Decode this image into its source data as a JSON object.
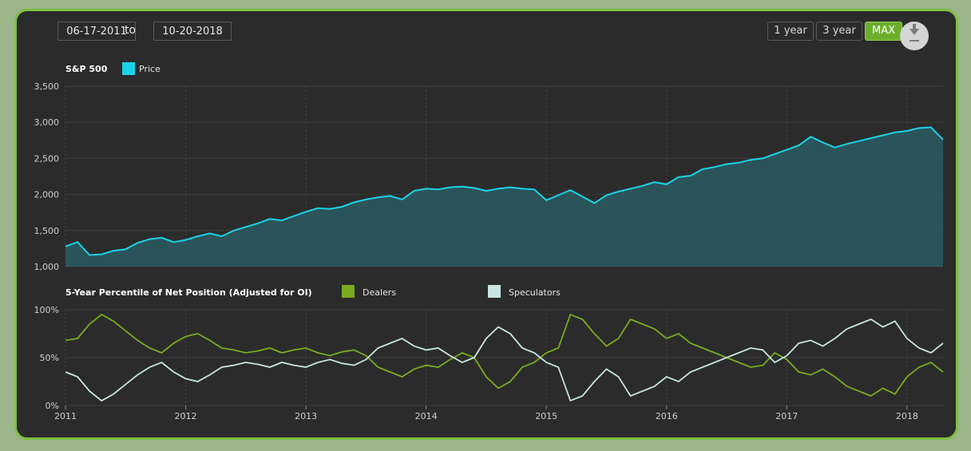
{
  "controls": {
    "start_date": "06-17-2011",
    "to_label": "to",
    "end_date": "10-20-2018",
    "range_buttons": [
      "1 year",
      "3 year",
      "MAX"
    ],
    "active_range": "MAX",
    "download_icon": "download-icon"
  },
  "colors": {
    "background": "#2b2b2b",
    "border": "#7dc141",
    "price": "#1ad3ea",
    "price_fill": "#2a5c62",
    "dealers": "#7aab1e",
    "speculators": "#c9e5e1"
  },
  "chart_data": [
    {
      "type": "area",
      "title": "S&P 500",
      "legend": [
        "Price"
      ],
      "ylim": [
        1000,
        3500
      ],
      "y_ticks": [
        "1,000",
        "1,500",
        "2,000",
        "2,500",
        "3,000",
        "3,500"
      ],
      "y_tick_values": [
        1000,
        1500,
        2000,
        2500,
        3000,
        3500
      ],
      "x_ticks": [
        "2011",
        "2012",
        "2013",
        "2014",
        "2015",
        "2016",
        "2017",
        "2018"
      ],
      "series": [
        {
          "name": "Price",
          "x": [
            2011.0,
            2011.1,
            2011.2,
            2011.3,
            2011.4,
            2011.5,
            2011.6,
            2011.7,
            2011.8,
            2011.9,
            2012.0,
            2012.1,
            2012.2,
            2012.3,
            2012.4,
            2012.5,
            2012.6,
            2012.7,
            2012.8,
            2012.9,
            2013.0,
            2013.1,
            2013.2,
            2013.3,
            2013.4,
            2013.5,
            2013.6,
            2013.7,
            2013.8,
            2013.9,
            2014.0,
            2014.1,
            2014.2,
            2014.3,
            2014.4,
            2014.5,
            2014.6,
            2014.7,
            2014.8,
            2014.9,
            2015.0,
            2015.1,
            2015.2,
            2015.3,
            2015.4,
            2015.5,
            2015.6,
            2015.7,
            2015.8,
            2015.9,
            2016.0,
            2016.1,
            2016.2,
            2016.3,
            2016.4,
            2016.5,
            2016.6,
            2016.7,
            2016.8,
            2016.9,
            2017.0,
            2017.1,
            2017.2,
            2017.3,
            2017.4,
            2017.5,
            2017.6,
            2017.7,
            2017.8,
            2017.9,
            2018.0,
            2018.1,
            2018.2,
            2018.3
          ],
          "values": [
            1280,
            1340,
            1160,
            1170,
            1220,
            1240,
            1330,
            1380,
            1400,
            1340,
            1370,
            1420,
            1460,
            1420,
            1500,
            1550,
            1600,
            1660,
            1640,
            1700,
            1760,
            1810,
            1800,
            1830,
            1890,
            1930,
            1960,
            1980,
            1930,
            2050,
            2080,
            2070,
            2100,
            2110,
            2090,
            2050,
            2080,
            2100,
            2080,
            2070,
            1920,
            1990,
            2060,
            1970,
            1880,
            1990,
            2040,
            2080,
            2120,
            2170,
            2140,
            2240,
            2260,
            2350,
            2380,
            2420,
            2440,
            2480,
            2500,
            2560,
            2620,
            2680,
            2800,
            2720,
            2650,
            2700,
            2740,
            2780,
            2820,
            2860,
            2880,
            2920,
            2930,
            2760
          ]
        }
      ]
    },
    {
      "type": "line",
      "title": "5-Year Percentile of Net Position (Adjusted for OI)",
      "legend": [
        "Dealers",
        "Speculators"
      ],
      "ylim": [
        0,
        100
      ],
      "y_ticks": [
        "0%",
        "50%",
        "100%"
      ],
      "y_tick_values": [
        0,
        50,
        100
      ],
      "x_ticks": [
        "2011",
        "2012",
        "2013",
        "2014",
        "2015",
        "2016",
        "2017",
        "2018"
      ],
      "x": [
        2011.0,
        2011.1,
        2011.2,
        2011.3,
        2011.4,
        2011.5,
        2011.6,
        2011.7,
        2011.8,
        2011.9,
        2012.0,
        2012.1,
        2012.2,
        2012.3,
        2012.4,
        2012.5,
        2012.6,
        2012.7,
        2012.8,
        2012.9,
        2013.0,
        2013.1,
        2013.2,
        2013.3,
        2013.4,
        2013.5,
        2013.6,
        2013.7,
        2013.8,
        2013.9,
        2014.0,
        2014.1,
        2014.2,
        2014.3,
        2014.4,
        2014.5,
        2014.6,
        2014.7,
        2014.8,
        2014.9,
        2015.0,
        2015.1,
        2015.2,
        2015.3,
        2015.4,
        2015.5,
        2015.6,
        2015.7,
        2015.8,
        2015.9,
        2016.0,
        2016.1,
        2016.2,
        2016.3,
        2016.4,
        2016.5,
        2016.6,
        2016.7,
        2016.8,
        2016.9,
        2017.0,
        2017.1,
        2017.2,
        2017.3,
        2017.4,
        2017.5,
        2017.6,
        2017.7,
        2017.8,
        2017.9,
        2018.0,
        2018.1,
        2018.2,
        2018.3
      ],
      "series": [
        {
          "name": "Dealers",
          "values": [
            68,
            70,
            85,
            95,
            88,
            78,
            68,
            60,
            55,
            65,
            72,
            75,
            68,
            60,
            58,
            55,
            57,
            60,
            55,
            58,
            60,
            55,
            52,
            56,
            58,
            52,
            40,
            35,
            30,
            38,
            42,
            40,
            48,
            55,
            50,
            30,
            18,
            25,
            40,
            45,
            55,
            60,
            95,
            90,
            75,
            62,
            70,
            90,
            85,
            80,
            70,
            75,
            65,
            60,
            55,
            50,
            45,
            40,
            42,
            55,
            48,
            35,
            32,
            38,
            30,
            20,
            15,
            10,
            18,
            12,
            30,
            40,
            45,
            35
          ]
        },
        {
          "name": "Speculators",
          "values": [
            35,
            30,
            15,
            5,
            12,
            22,
            32,
            40,
            45,
            35,
            28,
            25,
            32,
            40,
            42,
            45,
            43,
            40,
            45,
            42,
            40,
            45,
            48,
            44,
            42,
            48,
            60,
            65,
            70,
            62,
            58,
            60,
            52,
            45,
            50,
            70,
            82,
            75,
            60,
            55,
            45,
            40,
            5,
            10,
            25,
            38,
            30,
            10,
            15,
            20,
            30,
            25,
            35,
            40,
            45,
            50,
            55,
            60,
            58,
            45,
            52,
            65,
            68,
            62,
            70,
            80,
            85,
            90,
            82,
            88,
            70,
            60,
            55,
            65
          ]
        }
      ]
    }
  ]
}
